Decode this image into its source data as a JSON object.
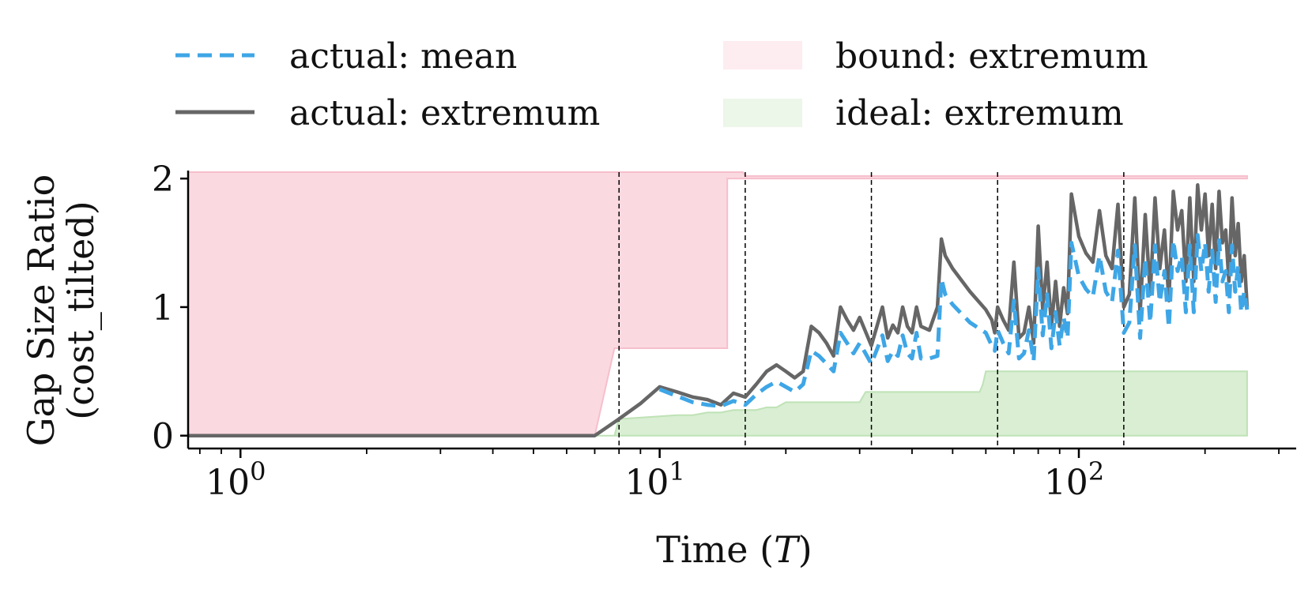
{
  "chart_data": {
    "type": "line",
    "xscale": "log",
    "xlabel_main": "Time (",
    "xlabel_var": "T",
    "xlabel_close": ")",
    "ylabel_line1": "Gap Size Ratio",
    "ylabel_line2": "(cost_tilted)",
    "xlim": [
      0.75,
      330
    ],
    "ylim": [
      -0.1,
      2.05
    ],
    "yticks": [
      {
        "value": 0,
        "label": "0"
      },
      {
        "value": 1,
        "label": "1"
      },
      {
        "value": 2,
        "label": "2"
      }
    ],
    "xticks_major": [
      {
        "value": 1,
        "base": "10",
        "exp": "0"
      },
      {
        "value": 10,
        "base": "10",
        "exp": "1"
      },
      {
        "value": 100,
        "base": "10",
        "exp": "2"
      }
    ],
    "vlines": [
      8,
      16,
      32,
      64,
      128
    ],
    "colors": {
      "mean": "#3ea6e6",
      "extremum": "#666666",
      "bound_fill": "#fbd9e1",
      "bound_edge": "#f6bfcc",
      "ideal_fill": "#d9eed3",
      "ideal_edge": "#bfe2b6"
    },
    "legend": {
      "placement": "top",
      "items": [
        {
          "key": "mean",
          "label": "actual: mean",
          "style": "dashed-line"
        },
        {
          "key": "bound",
          "label": "bound: extremum",
          "style": "fill-pink"
        },
        {
          "key": "extremum",
          "label": "actual: extremum",
          "style": "solid-line"
        },
        {
          "key": "ideal",
          "label": "ideal: extremum",
          "style": "fill-green"
        }
      ]
    },
    "series": [
      {
        "name": "actual: extremum",
        "x": [
          0.75,
          7,
          8,
          9,
          10,
          11,
          12,
          13,
          14,
          15,
          16,
          17,
          18,
          19,
          20,
          21,
          22,
          23,
          24,
          25,
          26,
          27,
          28,
          29,
          30,
          32,
          34,
          35,
          36,
          37,
          38,
          39,
          40,
          41,
          42,
          44,
          46,
          47,
          48,
          50,
          55,
          60,
          62,
          63,
          64,
          66,
          68,
          70,
          72,
          74,
          76,
          78,
          80,
          82,
          84,
          86,
          88,
          90,
          92,
          94,
          96,
          100,
          104,
          108,
          112,
          116,
          120,
          124,
          128,
          132,
          136,
          140,
          144,
          148,
          152,
          156,
          160,
          164,
          168,
          172,
          176,
          180,
          184,
          188,
          192,
          196,
          200,
          204,
          208,
          212,
          216,
          220,
          224,
          228,
          232,
          236,
          240,
          244,
          248,
          252
        ],
        "y": [
          0.0,
          0.0,
          0.13,
          0.25,
          0.38,
          0.34,
          0.3,
          0.28,
          0.24,
          0.33,
          0.3,
          0.4,
          0.5,
          0.55,
          0.5,
          0.45,
          0.5,
          0.85,
          0.8,
          0.72,
          0.62,
          1.0,
          0.9,
          0.82,
          0.92,
          0.7,
          1.0,
          0.76,
          0.86,
          0.8,
          1.0,
          0.85,
          0.8,
          1.0,
          0.85,
          0.82,
          1.0,
          1.53,
          1.4,
          1.3,
          1.12,
          0.98,
          0.9,
          0.8,
          1.0,
          0.9,
          0.82,
          1.35,
          0.76,
          0.8,
          1.0,
          0.72,
          1.63,
          0.98,
          1.35,
          0.85,
          1.2,
          0.85,
          1.15,
          0.95,
          1.88,
          1.55,
          1.42,
          1.35,
          1.75,
          1.4,
          1.3,
          1.8,
          1.0,
          1.1,
          1.85,
          0.95,
          1.72,
          1.1,
          1.85,
          1.3,
          1.6,
          1.05,
          1.9,
          1.6,
          1.75,
          1.2,
          1.85,
          1.2,
          1.95,
          1.6,
          1.88,
          1.4,
          1.8,
          1.3,
          1.9,
          1.5,
          1.6,
          1.2,
          1.85,
          1.4,
          1.65,
          1.2,
          1.4,
          1.0
        ]
      },
      {
        "name": "actual: mean",
        "x": [
          10,
          12,
          13,
          14,
          15,
          16,
          17,
          18,
          19,
          20,
          21,
          22,
          23,
          24,
          25,
          26,
          27,
          28,
          29,
          30,
          32,
          34,
          35,
          36,
          37,
          38,
          39,
          40,
          41,
          42,
          44,
          46,
          47,
          48,
          50,
          55,
          60,
          62,
          63,
          64,
          66,
          68,
          70,
          72,
          74,
          76,
          78,
          80,
          82,
          84,
          86,
          88,
          90,
          92,
          94,
          96,
          100,
          104,
          108,
          112,
          116,
          120,
          124,
          128,
          132,
          136,
          140,
          144,
          148,
          152,
          156,
          160,
          164,
          168,
          172,
          176,
          180,
          184,
          188,
          192,
          196,
          200,
          204,
          208,
          212,
          216,
          220,
          224,
          228,
          232,
          236,
          240,
          244,
          248,
          252
        ],
        "y": [
          0.36,
          0.26,
          0.24,
          0.23,
          0.27,
          0.24,
          0.32,
          0.38,
          0.42,
          0.38,
          0.34,
          0.4,
          0.66,
          0.62,
          0.56,
          0.5,
          0.8,
          0.72,
          0.64,
          0.72,
          0.56,
          0.78,
          0.58,
          0.66,
          0.62,
          0.78,
          0.64,
          0.6,
          0.8,
          0.6,
          0.6,
          0.62,
          1.22,
          1.1,
          1.02,
          0.88,
          0.8,
          0.7,
          0.66,
          0.82,
          0.72,
          0.64,
          1.05,
          0.6,
          0.64,
          0.82,
          0.58,
          1.3,
          0.78,
          1.1,
          0.68,
          0.96,
          0.7,
          0.92,
          0.76,
          1.5,
          1.24,
          1.14,
          1.08,
          1.4,
          1.12,
          1.04,
          1.44,
          0.8,
          0.88,
          1.48,
          0.76,
          1.38,
          0.88,
          1.48,
          1.04,
          1.28,
          0.84,
          1.52,
          1.28,
          1.4,
          0.96,
          1.48,
          0.96,
          1.56,
          1.28,
          1.5,
          1.12,
          1.44,
          1.04,
          1.52,
          1.2,
          1.28,
          0.96,
          1.48,
          1.12,
          1.32,
          0.96,
          1.12,
          0.98
        ]
      }
    ],
    "bound_upper": {
      "x": [
        0.75,
        7.4,
        8,
        14.5,
        15.8,
        16,
        252
      ],
      "y": [
        2.05,
        2.05,
        2.05,
        2.05,
        2.05,
        2.02,
        2.02
      ]
    },
    "bound_lower": {
      "x": [
        0.75,
        7.0,
        7.8,
        14.5,
        14.5,
        15.8,
        16,
        252
      ],
      "y": [
        0.0,
        0.0,
        0.68,
        0.68,
        2.0,
        2.0,
        2.0,
        2.0
      ]
    },
    "ideal_upper": {
      "x": [
        0.75,
        7.8,
        8,
        10,
        11,
        12,
        13,
        14,
        15,
        16,
        17,
        18,
        19,
        20,
        30,
        31,
        32,
        58,
        59,
        60,
        252
      ],
      "y": [
        0.0,
        0.0,
        0.13,
        0.15,
        0.16,
        0.16,
        0.18,
        0.18,
        0.2,
        0.2,
        0.2,
        0.22,
        0.22,
        0.26,
        0.26,
        0.34,
        0.34,
        0.34,
        0.4,
        0.5,
        0.5
      ]
    }
  }
}
